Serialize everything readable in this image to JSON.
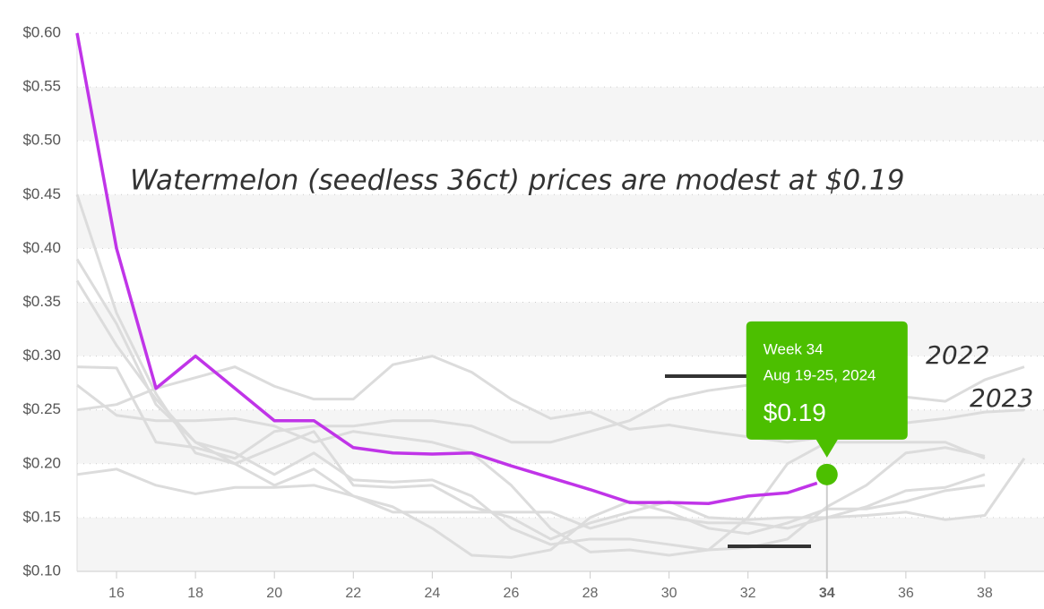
{
  "chart_data": {
    "type": "line",
    "title": "Watermelon (seedless 36ct) prices are modest at $0.19",
    "annotations": [
      "2022",
      "2023"
    ],
    "xlim": [
      15,
      39.5
    ],
    "xticks": [
      16,
      18,
      20,
      22,
      24,
      26,
      28,
      30,
      32,
      34,
      36,
      38
    ],
    "ylim": [
      0.1,
      0.6
    ],
    "yticks": [
      {
        "value": 0.1,
        "label": "$0.10"
      },
      {
        "value": 0.15,
        "label": "$0.15"
      },
      {
        "value": 0.2,
        "label": "$0.20"
      },
      {
        "value": 0.25,
        "label": "$0.25"
      },
      {
        "value": 0.3,
        "label": "$0.30"
      },
      {
        "value": 0.35,
        "label": "$0.35"
      },
      {
        "value": 0.4,
        "label": "$0.40"
      },
      {
        "value": 0.45,
        "label": "$0.45"
      },
      {
        "value": 0.5,
        "label": "$0.50"
      },
      {
        "value": 0.55,
        "label": "$0.55"
      },
      {
        "value": 0.6,
        "label": "$0.60"
      }
    ],
    "grid": true,
    "series": [
      {
        "color": "#dcdcdc",
        "x": [
          15,
          16,
          17,
          18,
          19,
          20,
          21,
          22,
          23,
          24,
          25,
          26,
          27,
          28,
          29,
          30,
          31,
          32,
          33,
          34,
          35,
          36,
          37,
          38,
          39
        ],
        "values": [
          0.29,
          0.289,
          0.22,
          0.215,
          0.205,
          0.23,
          0.235,
          0.235,
          0.24,
          0.24,
          0.235,
          0.22,
          0.22,
          0.23,
          0.24,
          0.26,
          0.268,
          0.273,
          0.27,
          0.265,
          0.263,
          0.262,
          0.258,
          0.278,
          0.29
        ]
      },
      {
        "color": "#dcdcdc",
        "x": [
          15,
          16,
          17,
          18,
          19,
          20,
          21,
          22,
          23,
          24,
          25,
          26,
          27,
          28,
          29,
          30,
          31,
          32,
          33,
          34,
          35,
          36,
          37,
          38,
          39
        ],
        "values": [
          0.25,
          0.255,
          0.27,
          0.28,
          0.29,
          0.272,
          0.26,
          0.26,
          0.292,
          0.3,
          0.285,
          0.26,
          0.242,
          0.248,
          0.232,
          0.236,
          0.23,
          0.225,
          0.22,
          0.225,
          0.23,
          0.238,
          0.242,
          0.248,
          0.25
        ]
      },
      {
        "color": "#dcdcdc",
        "x": [
          15,
          16,
          17,
          18,
          19,
          20,
          21,
          22,
          23,
          24,
          25,
          26,
          27,
          28,
          29,
          30,
          31,
          32,
          33,
          34,
          35,
          36,
          37,
          38
        ],
        "values": [
          0.45,
          0.34,
          0.265,
          0.21,
          0.2,
          0.215,
          0.23,
          0.18,
          0.178,
          0.18,
          0.16,
          0.15,
          0.13,
          0.145,
          0.155,
          0.165,
          0.15,
          0.148,
          0.15,
          0.15,
          0.16,
          0.175,
          0.178,
          0.19
        ]
      },
      {
        "color": "#dcdcdc",
        "x": [
          15,
          16,
          17,
          18,
          19,
          20,
          21,
          22,
          23,
          24,
          25,
          26,
          27,
          28,
          29,
          30,
          31,
          32,
          33,
          34,
          35,
          36,
          37,
          38
        ],
        "values": [
          0.39,
          0.33,
          0.255,
          0.22,
          0.21,
          0.19,
          0.21,
          0.185,
          0.183,
          0.185,
          0.17,
          0.14,
          0.125,
          0.13,
          0.13,
          0.125,
          0.12,
          0.122,
          0.13,
          0.16,
          0.18,
          0.21,
          0.215,
          0.207
        ]
      },
      {
        "color": "#dcdcdc",
        "x": [
          15,
          16,
          17,
          18,
          19,
          20,
          21,
          22,
          23,
          24,
          25,
          26,
          27,
          28,
          29,
          30,
          31,
          32,
          33,
          34,
          35,
          36,
          37,
          38
        ],
        "values": [
          0.37,
          0.31,
          0.26,
          0.22,
          0.2,
          0.18,
          0.195,
          0.17,
          0.16,
          0.14,
          0.115,
          0.113,
          0.12,
          0.15,
          0.165,
          0.155,
          0.14,
          0.135,
          0.145,
          0.158,
          0.158,
          0.165,
          0.175,
          0.18
        ]
      },
      {
        "color": "#dcdcdc",
        "x": [
          15,
          16,
          17,
          18,
          19,
          20,
          21,
          22,
          23,
          24,
          25,
          26,
          27,
          28,
          29,
          30,
          31,
          32,
          33,
          34,
          35,
          36,
          37,
          38,
          39
        ],
        "values": [
          0.19,
          0.195,
          0.18,
          0.172,
          0.178,
          0.178,
          0.18,
          0.17,
          0.155,
          0.155,
          0.155,
          0.155,
          0.155,
          0.14,
          0.15,
          0.15,
          0.145,
          0.145,
          0.14,
          0.15,
          0.152,
          0.155,
          0.148,
          0.152,
          0.205
        ]
      },
      {
        "color": "#dcdcdc",
        "x": [
          15,
          16,
          17,
          18,
          19,
          20,
          21,
          22,
          23,
          24,
          25,
          26,
          27,
          28,
          29,
          30,
          31,
          32,
          33,
          34,
          35,
          36,
          37,
          38
        ],
        "values": [
          0.273,
          0.245,
          0.24,
          0.24,
          0.242,
          0.235,
          0.22,
          0.23,
          0.225,
          0.22,
          0.21,
          0.18,
          0.14,
          0.118,
          0.12,
          0.115,
          0.12,
          0.15,
          0.2,
          0.22,
          0.22,
          0.22,
          0.22,
          0.205
        ]
      },
      {
        "color": "#c034e8",
        "x": [
          15,
          16,
          17,
          18,
          19,
          20,
          21,
          22,
          23,
          24,
          25,
          26,
          27,
          28,
          29,
          30,
          31,
          32,
          33,
          33.75
        ],
        "values": [
          0.6,
          0.4,
          0.27,
          0.3,
          0.27,
          0.24,
          0.24,
          0.215,
          0.21,
          0.209,
          0.21,
          0.198,
          0.187,
          0.176,
          0.164,
          0.164,
          0.163,
          0.17,
          0.173,
          0.182
        ]
      }
    ],
    "tooltip": {
      "title": "Week 34",
      "subtitle": "Aug 19-25, 2024",
      "x": 34,
      "value": 0.19,
      "label": "$0.19",
      "color": "#4cbf00"
    }
  }
}
